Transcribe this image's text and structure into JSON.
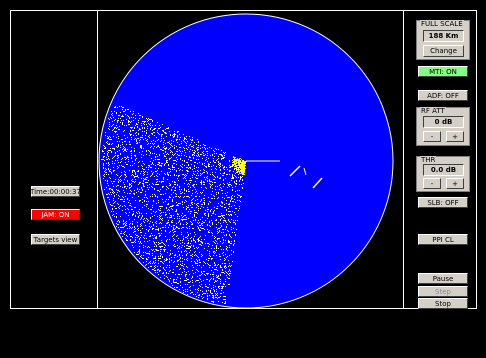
{
  "left_panel": {
    "time": "Time:00:00:37",
    "jam": "JAM: ON",
    "targets_view": "Targets view"
  },
  "right_panel": {
    "full_scale": {
      "title": "FULL SCALE",
      "value": "188 Km",
      "button": "Change"
    },
    "mti": "MTI: ON",
    "adf": "ADF: OFF",
    "rf_att": {
      "title": "RF ATT",
      "value": "0 dB",
      "minus": "-",
      "plus": "+"
    },
    "thr": {
      "title": "THR",
      "value": "0.0 dB",
      "minus": "-",
      "plus": "+"
    },
    "slb": "SLB: OFF",
    "ppi_cl": "PPI CL",
    "pause": "Pause",
    "step": "Step",
    "stop": "Stop"
  }
}
